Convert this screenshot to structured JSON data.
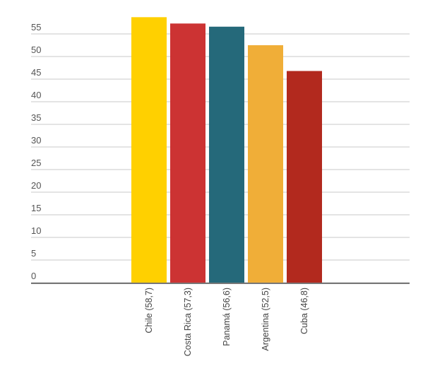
{
  "chart_data": {
    "type": "bar",
    "categories": [
      "Chile (58,7)",
      "Costa Rica (57,3)",
      "Panamá (56,6)",
      "Argentina (52,5)",
      "Cuba (46,8)"
    ],
    "values": [
      58.7,
      57.3,
      56.6,
      52.5,
      46.8
    ],
    "colors": [
      "#FFD000",
      "#CC3333",
      "#25697A",
      "#F0AE38",
      "#B2291E"
    ],
    "ylim": [
      0,
      60
    ],
    "yticks": [
      "0",
      "5",
      "10",
      "15",
      "20",
      "25",
      "30",
      "35",
      "40",
      "45",
      "50",
      "55"
    ],
    "grid": true,
    "title": "",
    "xlabel": "",
    "ylabel": ""
  }
}
